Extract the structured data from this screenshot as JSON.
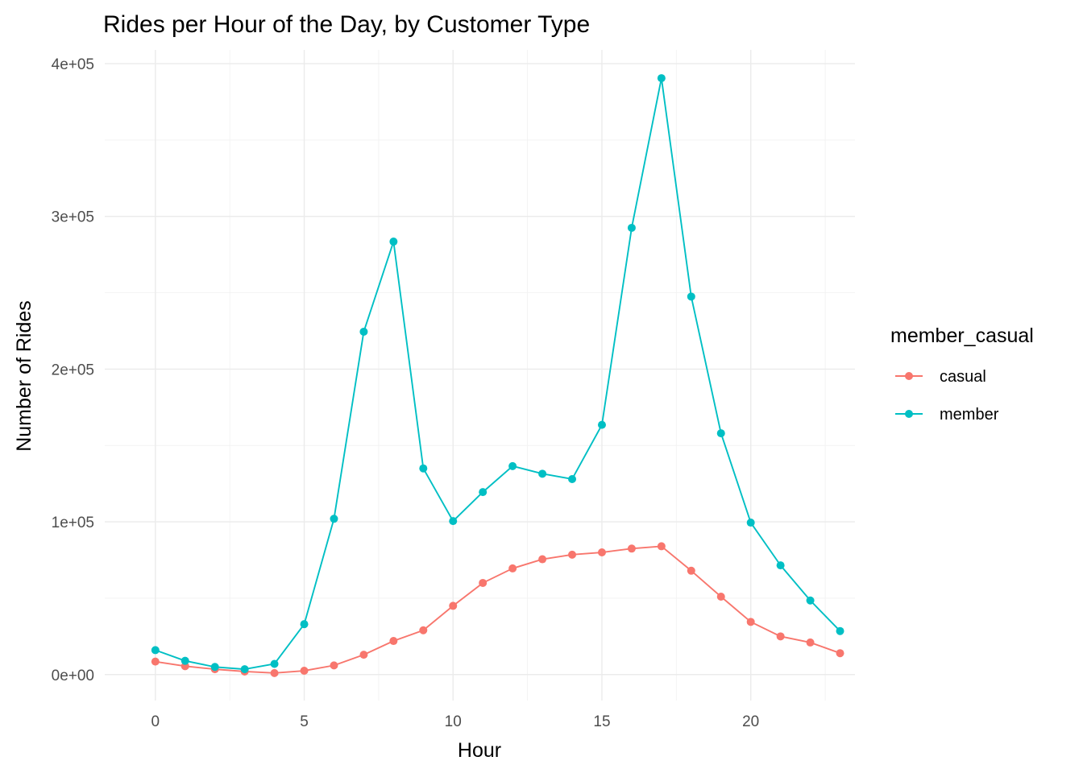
{
  "chart_data": {
    "type": "line",
    "title": "Rides per Hour of the Day, by Customer Type",
    "xlabel": "Hour",
    "ylabel": "Number of Rides",
    "xlim": [
      -1.7,
      23.5
    ],
    "ylim": [
      -17000,
      409000
    ],
    "x_ticks": [
      0,
      5,
      10,
      15,
      20
    ],
    "x_tick_labels": [
      "0",
      "5",
      "10",
      "15",
      "20"
    ],
    "y_ticks": [
      0,
      100000,
      200000,
      300000,
      400000
    ],
    "y_tick_labels": [
      "0e+00",
      "1e+05",
      "2e+05",
      "3e+05",
      "4e+05"
    ],
    "grid": true,
    "legend": {
      "title": "member_casual",
      "position": "right"
    },
    "x": [
      0,
      1,
      2,
      3,
      4,
      5,
      6,
      7,
      8,
      9,
      10,
      11,
      12,
      13,
      14,
      15,
      16,
      17,
      18,
      19,
      20,
      21,
      22,
      23
    ],
    "series": [
      {
        "name": "casual",
        "color": "#F8766D",
        "values": [
          8500,
          5500,
          3500,
          2000,
          1000,
          2500,
          6000,
          13000,
          22000,
          29000,
          45000,
          60000,
          69500,
          75500,
          78500,
          80000,
          82500,
          84000,
          68000,
          51000,
          34500,
          25000,
          21000,
          14000
        ]
      },
      {
        "name": "member",
        "color": "#00BFC4",
        "values": [
          16000,
          9000,
          5000,
          3500,
          7000,
          33000,
          102000,
          224500,
          283500,
          135000,
          100500,
          119500,
          136500,
          131500,
          128000,
          163500,
          292500,
          390500,
          247500,
          158000,
          99500,
          71500,
          48500,
          28500
        ]
      }
    ]
  }
}
